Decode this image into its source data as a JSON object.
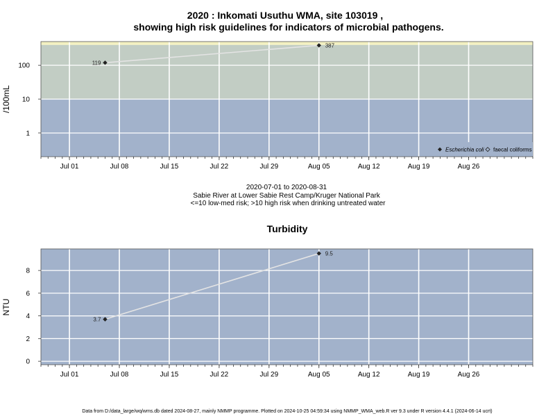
{
  "chart_data": [
    {
      "type": "line",
      "title": "2020 : Inkomati Usuthu WMA, site 103019 ,",
      "title2": "showing high risk guidelines for indicators of microbial pathogens.",
      "ylabel": "/100mL",
      "yscale": "log",
      "xlim": [
        "2020-06-27",
        "2020-09-04"
      ],
      "ylim": [
        0.2,
        500
      ],
      "yticks": [
        1,
        10,
        100
      ],
      "ytick_labels": [
        "1",
        "10",
        "100"
      ],
      "bands": [
        {
          "from": 0.2,
          "to": 10,
          "color": "#a2b2cb"
        },
        {
          "from": 10,
          "to": 400,
          "color": "#c2cdc4"
        },
        {
          "from": 400,
          "to": 500,
          "color": "#f3f0c1"
        }
      ],
      "xticks": [
        "2020-07-01",
        "2020-07-08",
        "2020-07-15",
        "2020-07-22",
        "2020-07-29",
        "2020-08-05",
        "2020-08-12",
        "2020-08-19",
        "2020-08-26"
      ],
      "xtick_labels": [
        "Jul 01",
        "Jul 08",
        "Jul 15",
        "Jul 22",
        "Jul 29",
        "Aug 05",
        "Aug 12",
        "Aug 19",
        "Aug 26"
      ],
      "series": [
        {
          "name": "Escherichia coli",
          "x": [
            "2020-07-06",
            "2020-08-05"
          ],
          "y": [
            119,
            387
          ],
          "labels": [
            "119",
            "387"
          ],
          "marker": "diamond"
        },
        {
          "name": "faecal coliforms",
          "x": [],
          "y": [],
          "labels": [],
          "marker": "diamond-open"
        }
      ],
      "legend": "bottom-right",
      "grid": true,
      "colors": {
        "line": "#e4e4e4",
        "grid": "#ffffff",
        "marker": "#222222",
        "frame": "#555555"
      },
      "notes": [
        "2020-07-01 to 2020-08-31",
        "Sabie River at Lower Sabie Rest Camp/Kruger National Park",
        "<=10 low-med risk; >10 high risk when drinking untreated water"
      ]
    },
    {
      "type": "line",
      "title": "Turbidity",
      "ylabel": "NTU",
      "xlim": [
        "2020-06-27",
        "2020-09-04"
      ],
      "ylim": [
        -0.3,
        9.9
      ],
      "yticks": [
        0,
        2,
        4,
        6,
        8
      ],
      "ytick_labels": [
        "0",
        "2",
        "4",
        "6",
        "8"
      ],
      "xticks": [
        "2020-07-01",
        "2020-07-08",
        "2020-07-15",
        "2020-07-22",
        "2020-07-29",
        "2020-08-05",
        "2020-08-12",
        "2020-08-19",
        "2020-08-26"
      ],
      "xtick_labels": [
        "Jul 01",
        "Jul 08",
        "Jul 15",
        "Jul 22",
        "Jul 29",
        "Aug 05",
        "Aug 12",
        "Aug 19",
        "Aug 26"
      ],
      "series": [
        {
          "x": [
            "2020-07-06",
            "2020-08-05"
          ],
          "y": [
            3.7,
            9.5
          ],
          "labels": [
            "3.7",
            "9.5"
          ],
          "marker": "diamond"
        }
      ],
      "grid": true,
      "colors": {
        "background": "#a2b2cb",
        "line": "#e4e4e4",
        "grid": "#ffffff",
        "marker": "#222222",
        "frame": "#555555"
      }
    }
  ],
  "footer": "Data from D:/data_large/wq/wms.db dated 2024-08-27, mainly NMMP programme. Plotted on 2024-10-25 04:59:34 using NMMP_WMA_web.R ver 9.3 under R version 4.4.1 (2024-06-14 ucrt)"
}
